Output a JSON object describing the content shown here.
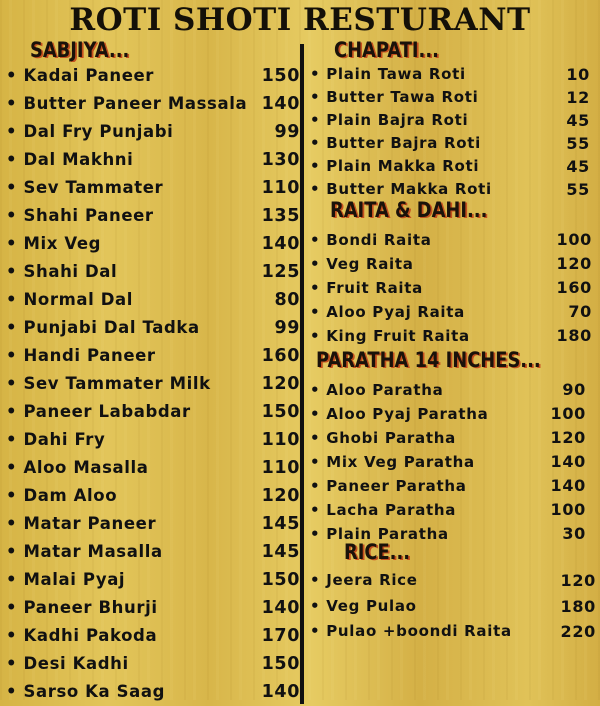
{
  "title": "ROTI SHOTI RESTURANT",
  "sections": {
    "sabjiya": {
      "heading": "SABJIYA...",
      "items": [
        {
          "name": "Kadai Paneer",
          "price": "150"
        },
        {
          "name": "Butter Paneer Massala",
          "price": "140"
        },
        {
          "name": "Dal Fry Punjabi",
          "price": "99"
        },
        {
          "name": "Dal Makhni",
          "price": "130"
        },
        {
          "name": "Sev Tammater",
          "price": "110"
        },
        {
          "name": "Shahi Paneer",
          "price": "135"
        },
        {
          "name": "Mix Veg",
          "price": "140"
        },
        {
          "name": "Shahi Dal",
          "price": "125"
        },
        {
          "name": "Normal Dal",
          "price": "80"
        },
        {
          "name": "Punjabi Dal Tadka",
          "price": "99"
        },
        {
          "name": "Handi Paneer",
          "price": "160"
        },
        {
          "name": "Sev Tammater Milk",
          "price": "120"
        },
        {
          "name": "Paneer Lababdar",
          "price": "150"
        },
        {
          "name": "Dahi Fry",
          "price": "110"
        },
        {
          "name": "Aloo Masalla",
          "price": "110"
        },
        {
          "name": "Dam Aloo",
          "price": "120"
        },
        {
          "name": "Matar Paneer",
          "price": "145"
        },
        {
          "name": "Matar Masalla",
          "price": "145"
        },
        {
          "name": "Malai Pyaj",
          "price": "150"
        },
        {
          "name": "Paneer Bhurji",
          "price": "140"
        },
        {
          "name": "Kadhi Pakoda",
          "price": "170"
        },
        {
          "name": "Desi Kadhi",
          "price": "150"
        },
        {
          "name": "Sarso Ka Saag",
          "price": "140"
        }
      ]
    },
    "chapati": {
      "heading": "CHAPATI...",
      "items": [
        {
          "name": "Plain Tawa Roti",
          "price": "10"
        },
        {
          "name": "Butter Tawa Roti",
          "price": "12"
        },
        {
          "name": "Plain Bajra Roti",
          "price": "45"
        },
        {
          "name": "Butter Bajra Roti",
          "price": "55"
        },
        {
          "name": "Plain Makka Roti",
          "price": "45"
        },
        {
          "name": "Butter Makka Roti",
          "price": "55"
        }
      ]
    },
    "raita": {
      "heading": "RAITA & DAHI...",
      "items": [
        {
          "name": "Bondi Raita",
          "price": "100"
        },
        {
          "name": "Veg Raita",
          "price": "120"
        },
        {
          "name": "Fruit Raita",
          "price": "160"
        },
        {
          "name": "Aloo Pyaj Raita",
          "price": "70"
        },
        {
          "name": "King  Fruit Raita",
          "price": "180"
        }
      ]
    },
    "paratha": {
      "heading": "PARATHA 14 INCHES...",
      "items": [
        {
          "name": "Aloo Paratha",
          "price": "90"
        },
        {
          "name": "Aloo Pyaj Paratha",
          "price": "100"
        },
        {
          "name": "Ghobi Paratha",
          "price": "120"
        },
        {
          "name": "Mix Veg Paratha",
          "price": "140"
        },
        {
          "name": "Paneer Paratha",
          "price": "140"
        },
        {
          "name": "Lacha Paratha",
          "price": "100"
        },
        {
          "name": "Plain Paratha",
          "price": "30"
        }
      ]
    },
    "rice": {
      "heading": "RICE...",
      "items": [
        {
          "name": "Jeera Rice",
          "price": "120"
        },
        {
          "name": "Veg Pulao",
          "price": "180"
        },
        {
          "name": "Pulao +boondi Raita",
          "price": "220"
        }
      ]
    }
  }
}
